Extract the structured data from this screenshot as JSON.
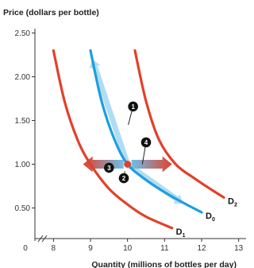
{
  "chart_data": {
    "type": "line",
    "ylabel": "Price (dollars per bottle)",
    "xlabel": "Quantity (millions of bottles per day)",
    "x_ticks": [
      {
        "value": 0,
        "label": "0"
      },
      {
        "value": 8,
        "label": "8"
      },
      {
        "value": 9,
        "label": "9"
      },
      {
        "value": 10,
        "label": "10"
      },
      {
        "value": 11,
        "label": "11"
      },
      {
        "value": 12,
        "label": "12"
      },
      {
        "value": 13,
        "label": "13"
      }
    ],
    "y_ticks": [
      {
        "value": 0.5,
        "label": "0.50"
      },
      {
        "value": 1.0,
        "label": "1.00"
      },
      {
        "value": 1.5,
        "label": "1.50"
      },
      {
        "value": 2.0,
        "label": "2.00"
      },
      {
        "value": 2.5,
        "label": "2.50"
      }
    ],
    "xlim": [
      7.5,
      13.2
    ],
    "ylim": [
      0.15,
      2.55
    ],
    "axis_break": true,
    "grid": false,
    "series": [
      {
        "name": "D1",
        "label_main": "D",
        "label_sub": "1",
        "color": "#e2412b",
        "points": [
          [
            8.0,
            2.3
          ],
          [
            8.3,
            1.72
          ],
          [
            8.65,
            1.28
          ],
          [
            9.0,
            1.0
          ],
          [
            9.5,
            0.72
          ],
          [
            10.0,
            0.54
          ],
          [
            10.5,
            0.4
          ],
          [
            11.2,
            0.27
          ]
        ]
      },
      {
        "name": "D0",
        "label_main": "D",
        "label_sub": "0",
        "color": "#1aa0e0",
        "points": [
          [
            9.0,
            2.3
          ],
          [
            9.3,
            1.72
          ],
          [
            9.65,
            1.28
          ],
          [
            10.0,
            1.0
          ],
          [
            10.5,
            0.82
          ],
          [
            11.0,
            0.68
          ],
          [
            11.5,
            0.56
          ],
          [
            12.0,
            0.45
          ]
        ]
      },
      {
        "name": "D2",
        "label_main": "D",
        "label_sub": "2",
        "color": "#e2412b",
        "points": [
          [
            10.2,
            2.3
          ],
          [
            10.5,
            1.72
          ],
          [
            10.85,
            1.28
          ],
          [
            11.3,
            1.0
          ],
          [
            11.8,
            0.84
          ],
          [
            12.3,
            0.7
          ],
          [
            12.6,
            0.62
          ]
        ]
      }
    ],
    "equilibrium_point": {
      "x": 10.0,
      "y": 1.0,
      "color": "#e2412b"
    },
    "movement_arrows": [
      {
        "from": [
          10.0,
          1.0
        ],
        "to": [
          9.05,
          2.2
        ],
        "type": "along-curve"
      },
      {
        "from": [
          10.0,
          1.0
        ],
        "to": [
          11.5,
          0.55
        ],
        "type": "along-curve"
      },
      {
        "from": [
          10.0,
          1.0
        ],
        "to": [
          8.8,
          1.0
        ],
        "type": "shift"
      },
      {
        "from": [
          10.0,
          1.0
        ],
        "to": [
          11.2,
          1.0
        ],
        "type": "shift"
      }
    ],
    "annotations": [
      {
        "text": "1",
        "x": 10.15,
        "y": 1.66
      },
      {
        "text": "2",
        "x": 9.9,
        "y": 0.84
      },
      {
        "text": "3",
        "x": 9.5,
        "y": 0.96
      },
      {
        "text": "4",
        "x": 10.5,
        "y": 1.25
      }
    ]
  }
}
